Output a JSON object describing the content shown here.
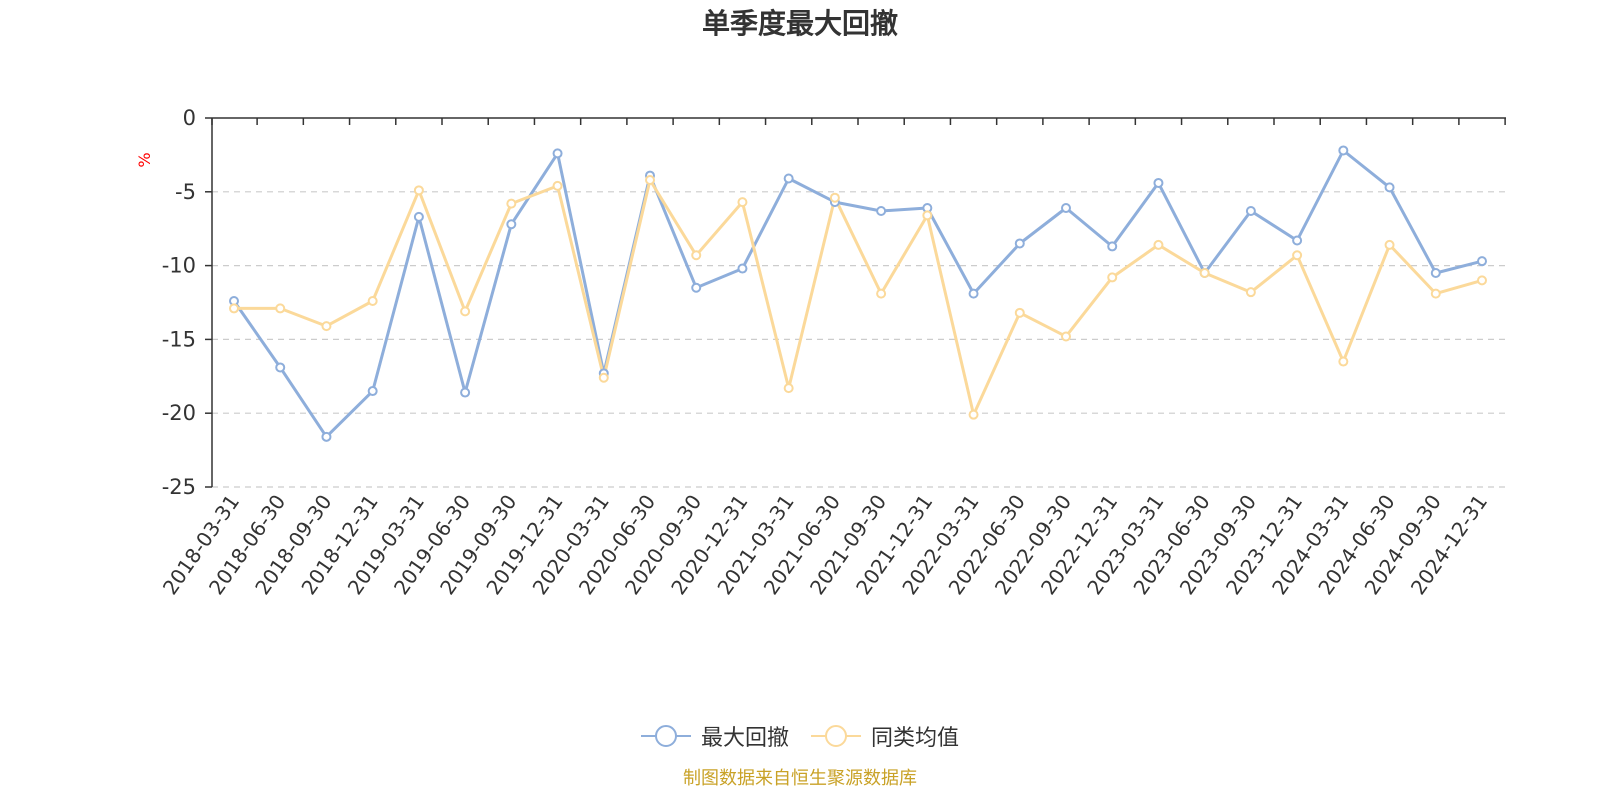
{
  "chart_data": {
    "type": "line",
    "title": "单季度最大回撤",
    "ylabel": "%",
    "xlabel": "",
    "ylim": [
      -25,
      0
    ],
    "yticks": [
      0,
      -5,
      -10,
      -15,
      -20,
      -25
    ],
    "grid": "horizontal-dashed",
    "legend_position": "bottom-center",
    "categories": [
      "2018-03-31",
      "2018-06-30",
      "2018-09-30",
      "2018-12-31",
      "2019-03-31",
      "2019-06-30",
      "2019-09-30",
      "2019-12-31",
      "2020-03-31",
      "2020-06-30",
      "2020-09-30",
      "2020-12-31",
      "2021-03-31",
      "2021-06-30",
      "2021-09-30",
      "2021-12-31",
      "2022-03-31",
      "2022-06-30",
      "2022-09-30",
      "2022-12-31",
      "2023-03-31",
      "2023-06-30",
      "2023-09-30",
      "2023-12-31",
      "2024-03-31",
      "2024-06-30",
      "2024-09-30",
      "2024-12-31"
    ],
    "series": [
      {
        "name": "最大回撤",
        "color": "#8eaedb",
        "values": [
          -12.4,
          -16.9,
          -21.6,
          -18.5,
          -6.7,
          -18.6,
          -7.2,
          -2.4,
          -17.3,
          -3.9,
          -11.5,
          -10.2,
          -4.1,
          -5.7,
          -6.3,
          -6.1,
          -11.9,
          -8.5,
          -6.1,
          -8.7,
          -4.4,
          -10.5,
          -6.3,
          -8.3,
          -2.2,
          -4.7,
          -10.5,
          -9.7
        ]
      },
      {
        "name": "同类均值",
        "color": "#fbd99a",
        "values": [
          -12.9,
          -12.9,
          -14.1,
          -12.4,
          -4.9,
          -13.1,
          -5.8,
          -4.6,
          -17.6,
          -4.2,
          -9.3,
          -5.7,
          -18.3,
          -5.4,
          -11.9,
          -6.6,
          -20.1,
          -13.2,
          -14.8,
          -10.8,
          -8.6,
          -10.5,
          -11.8,
          -9.3,
          -16.5,
          -8.6,
          -11.9,
          -11.0
        ]
      }
    ]
  },
  "source_note": "制图数据来自恒生聚源数据库",
  "colors": {
    "axis": "#333333",
    "grid": "#cccccc",
    "tick_text": "#333333",
    "ylabel": "#ff0000",
    "source_note": "#c9a227"
  }
}
